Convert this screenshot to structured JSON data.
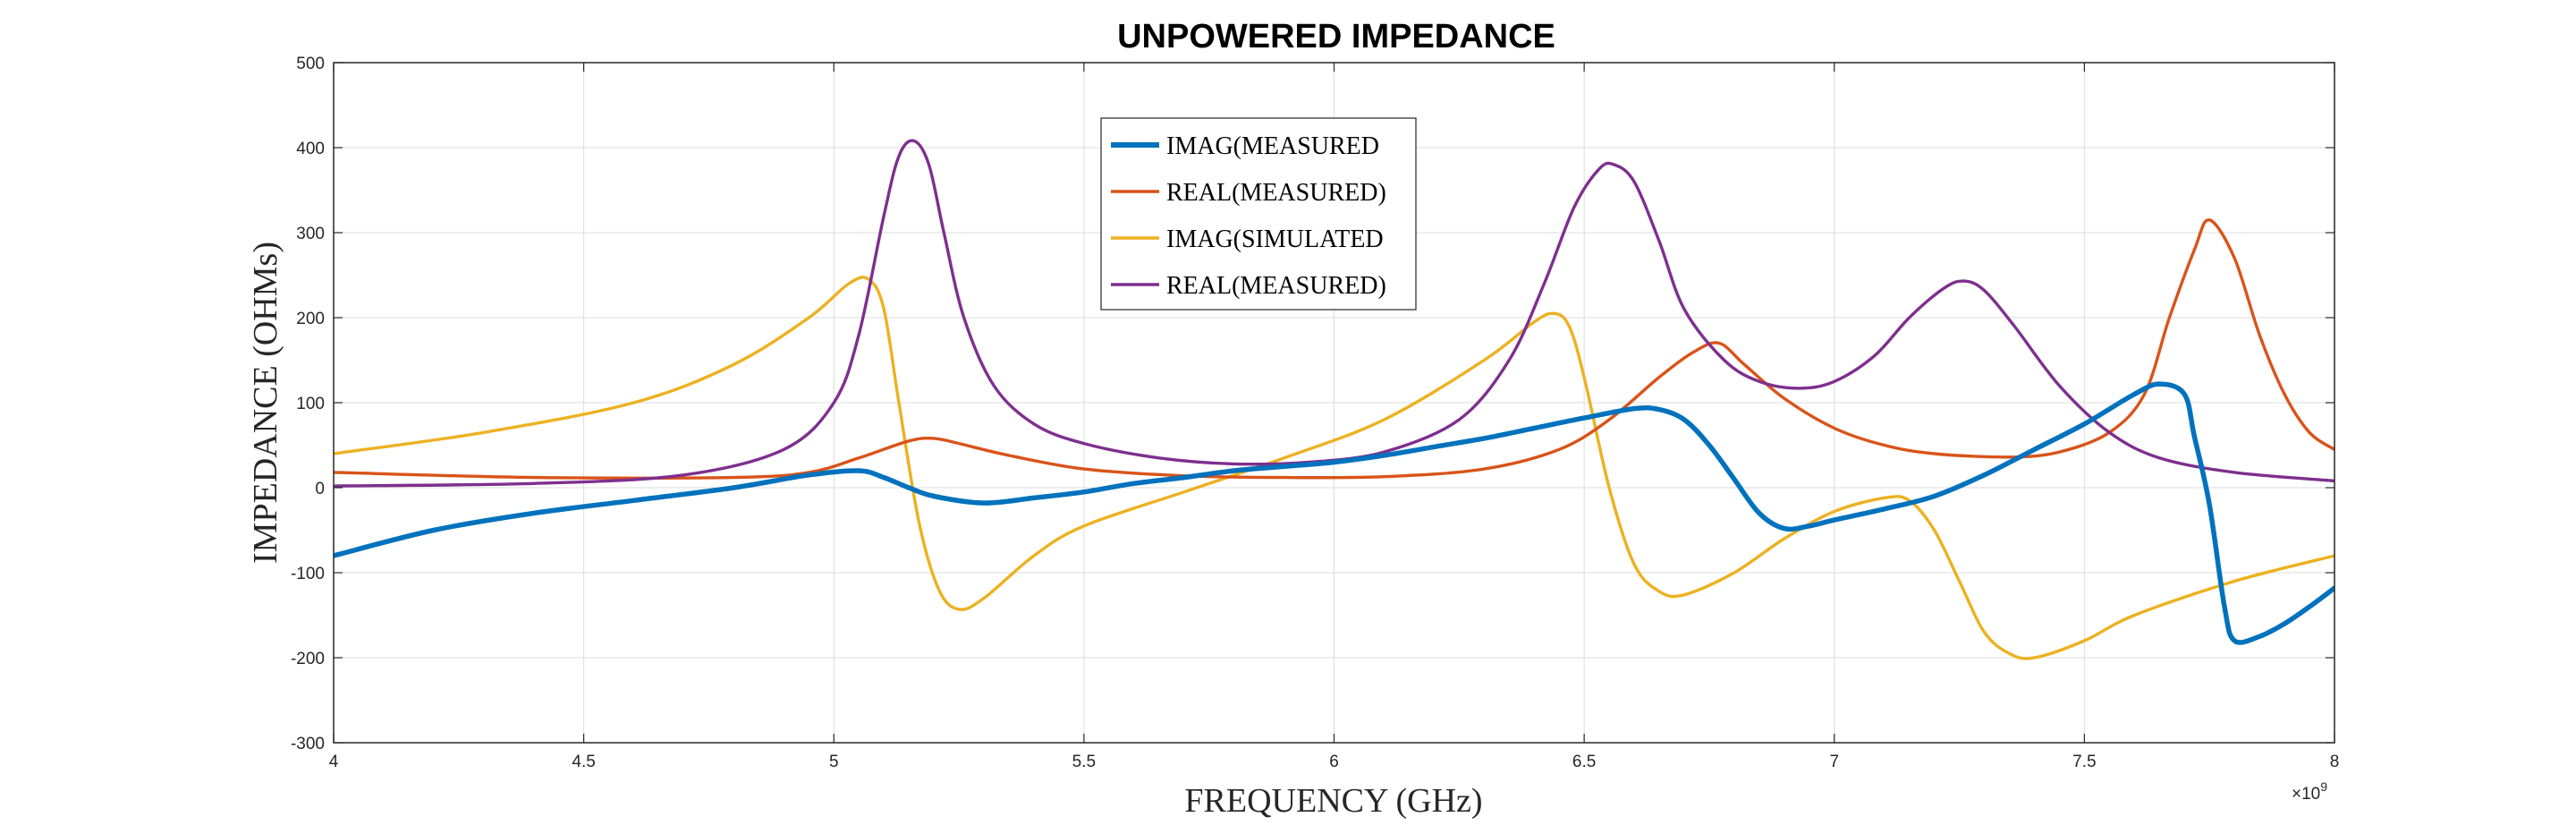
{
  "chart_data": {
    "type": "line",
    "title": "UNPOWERED IMPEDANCE",
    "xlabel": "FREQUENCY (GHz)",
    "ylabel": "IMPEDANCE (OHMs)",
    "x_exponent": {
      "base": "×10",
      "power": "9"
    },
    "xlim": [
      4000000000.0,
      8000000000.0
    ],
    "ylim": [
      -300,
      500
    ],
    "xticks": [
      4,
      4.5,
      5,
      5.5,
      6,
      6.5,
      7,
      7.5,
      8
    ],
    "yticks": [
      -300,
      -200,
      -100,
      0,
      100,
      200,
      300,
      400,
      500
    ],
    "grid": true,
    "legend_position": "top-center",
    "series": [
      {
        "name": "IMAG(MEASURED",
        "color": "#0072BD",
        "line_width": "thick",
        "x": [
          4.0,
          4.2,
          4.4,
          4.6,
          4.8,
          4.95,
          5.05,
          5.1,
          5.15,
          5.2,
          5.3,
          5.4,
          5.5,
          5.6,
          5.7,
          5.8,
          5.9,
          6.0,
          6.1,
          6.2,
          6.3,
          6.4,
          6.5,
          6.6,
          6.65,
          6.7,
          6.75,
          6.8,
          6.85,
          6.9,
          6.95,
          7.0,
          7.1,
          7.2,
          7.3,
          7.4,
          7.5,
          7.6,
          7.65,
          7.7,
          7.72,
          7.75,
          7.78,
          7.8,
          7.85,
          7.9,
          7.95,
          8.0
        ],
        "y": [
          -80,
          -50,
          -30,
          -15,
          0,
          15,
          20,
          12,
          0,
          -10,
          -18,
          -12,
          -5,
          5,
          12,
          20,
          25,
          30,
          38,
          48,
          58,
          70,
          82,
          93,
          92,
          80,
          50,
          10,
          -30,
          -48,
          -45,
          -38,
          -25,
          -10,
          15,
          45,
          75,
          110,
          122,
          110,
          60,
          -20,
          -140,
          -180,
          -175,
          -160,
          -140,
          -118
        ]
      },
      {
        "name": "REAL(MEASURED)",
        "color": "#D95319",
        "line_width": "normal",
        "x": [
          4.0,
          4.4,
          4.8,
          4.95,
          5.05,
          5.15,
          5.2,
          5.25,
          5.35,
          5.5,
          5.7,
          5.9,
          6.1,
          6.3,
          6.45,
          6.55,
          6.65,
          6.72,
          6.77,
          6.82,
          6.9,
          7.0,
          7.1,
          7.2,
          7.35,
          7.45,
          7.55,
          7.62,
          7.67,
          7.72,
          7.75,
          7.8,
          7.85,
          7.9,
          7.95,
          8.0
        ],
        "y": [
          18,
          12,
          12,
          18,
          35,
          55,
          58,
          52,
          38,
          22,
          14,
          12,
          13,
          22,
          45,
          80,
          130,
          160,
          170,
          145,
          105,
          70,
          50,
          40,
          36,
          42,
          65,
          110,
          200,
          280,
          315,
          270,
          180,
          110,
          65,
          45
        ]
      },
      {
        "name": "IMAG(SIMULATED",
        "color": "#EDB120",
        "line_width": "normal",
        "x": [
          4.0,
          4.3,
          4.6,
          4.8,
          4.95,
          5.03,
          5.07,
          5.1,
          5.13,
          5.17,
          5.21,
          5.25,
          5.3,
          5.4,
          5.5,
          5.7,
          5.9,
          6.1,
          6.3,
          6.4,
          6.44,
          6.47,
          6.5,
          6.55,
          6.6,
          6.65,
          6.7,
          6.8,
          6.9,
          7.0,
          7.1,
          7.15,
          7.2,
          7.25,
          7.3,
          7.35,
          7.4,
          7.5,
          7.6,
          7.8,
          8.0
        ],
        "y": [
          40,
          65,
          100,
          145,
          200,
          240,
          245,
          210,
          100,
          -40,
          -120,
          -143,
          -130,
          -80,
          -45,
          -5,
          35,
          80,
          150,
          195,
          205,
          190,
          130,
          0,
          -90,
          -122,
          -126,
          -100,
          -60,
          -28,
          -12,
          -15,
          -50,
          -110,
          -170,
          -195,
          -200,
          -180,
          -150,
          -110,
          -80
        ]
      },
      {
        "name": "REAL(MEASURED)",
        "color": "#7E2F8E",
        "line_width": "normal",
        "x": [
          4.0,
          4.4,
          4.7,
          4.9,
          5.0,
          5.05,
          5.1,
          5.13,
          5.16,
          5.19,
          5.22,
          5.26,
          5.32,
          5.4,
          5.5,
          5.65,
          5.8,
          5.95,
          6.1,
          6.25,
          6.35,
          6.42,
          6.48,
          6.53,
          6.56,
          6.6,
          6.65,
          6.7,
          6.78,
          6.85,
          6.93,
          7.0,
          7.08,
          7.15,
          7.22,
          7.26,
          7.3,
          7.36,
          7.45,
          7.55,
          7.65,
          7.8,
          8.0
        ],
        "y": [
          2,
          5,
          15,
          45,
          100,
          180,
          320,
          390,
          408,
          380,
          300,
          200,
          120,
          75,
          52,
          35,
          28,
          30,
          42,
          80,
          150,
          240,
          330,
          375,
          380,
          360,
          290,
          210,
          150,
          125,
          117,
          125,
          155,
          200,
          235,
          243,
          232,
          190,
          120,
          65,
          35,
          18,
          8
        ]
      }
    ]
  }
}
